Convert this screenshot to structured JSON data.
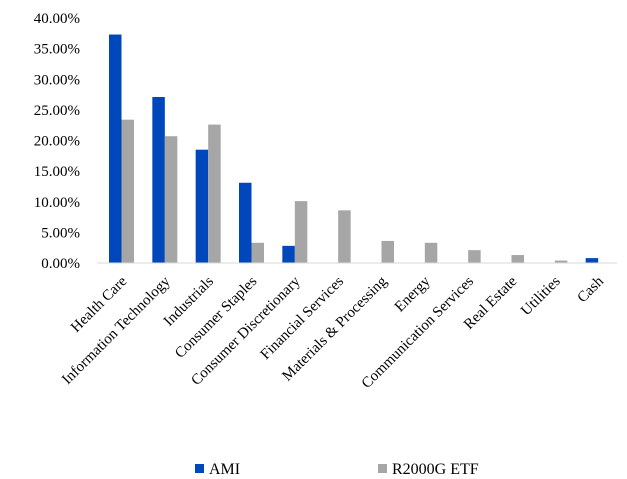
{
  "chart_data": {
    "type": "bar",
    "title": "",
    "xlabel": "",
    "ylabel": "",
    "ylim": [
      0,
      0.4
    ],
    "y_ticks": [
      "0.00%",
      "5.00%",
      "10.00%",
      "15.00%",
      "20.00%",
      "25.00%",
      "30.00%",
      "35.00%",
      "40.00%"
    ],
    "grid": false,
    "legend_position": "bottom",
    "categories": [
      "Health Care",
      "Information Technology",
      "Industrials",
      "Consumer Staples",
      "Consumer Discretionary",
      "Financial Services",
      "Materials & Processing",
      "Energy",
      "Communication Services",
      "Real Estate",
      "Utilities",
      "Cash"
    ],
    "series": [
      {
        "name": "AMI",
        "color": "#0047BB",
        "values": [
          0.373,
          0.271,
          0.185,
          0.131,
          0.028,
          0.0,
          0.0,
          0.0,
          0.0,
          0.0,
          0.0,
          0.008
        ]
      },
      {
        "name": "R2000G ETF",
        "color": "#A6A6A6",
        "values": [
          0.234,
          0.207,
          0.226,
          0.033,
          0.101,
          0.086,
          0.036,
          0.033,
          0.021,
          0.013,
          0.004,
          0.0
        ]
      }
    ]
  }
}
